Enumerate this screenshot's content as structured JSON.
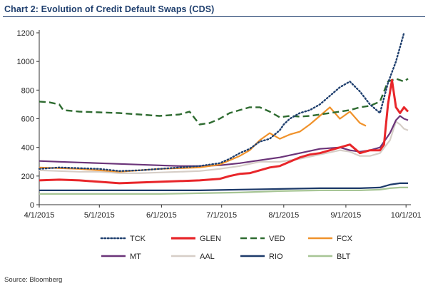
{
  "chart_data": {
    "type": "line",
    "title": "Chart 2: Evolution of Credit Default Swaps (CDS)",
    "xlabel": "",
    "ylabel": "",
    "ylim": [
      0,
      1200
    ],
    "yticks": [
      0,
      200,
      400,
      600,
      800,
      1000,
      1200
    ],
    "xlim": [
      0,
      184
    ],
    "xticks": [
      {
        "label": "4/1/2015",
        "day": 0
      },
      {
        "label": "5/1/2015",
        "day": 30
      },
      {
        "label": "6/1/2015",
        "day": 61
      },
      {
        "label": "7/1/2015",
        "day": 91
      },
      {
        "label": "8/1/2015",
        "day": 122
      },
      {
        "label": "9/1/2015",
        "day": 153
      },
      {
        "label": "10/1/201",
        "day": 183
      }
    ],
    "x_unit": "days since 4/1/2015",
    "grid": false,
    "legend_position": "bottom",
    "source": "Source: Bloomberg",
    "series": [
      {
        "name": "TCK",
        "color": "#1f3f6e",
        "style": "dotted",
        "x": [
          0,
          10,
          20,
          30,
          40,
          50,
          60,
          70,
          80,
          90,
          95,
          100,
          105,
          110,
          115,
          120,
          122,
          125,
          130,
          135,
          140,
          145,
          150,
          155,
          160,
          165,
          170,
          174,
          178,
          182
        ],
        "y": [
          250,
          260,
          255,
          250,
          235,
          240,
          250,
          260,
          270,
          290,
          320,
          360,
          390,
          440,
          460,
          520,
          560,
          600,
          640,
          660,
          700,
          760,
          820,
          860,
          790,
          700,
          640,
          850,
          1000,
          1200
        ]
      },
      {
        "name": "GLEN",
        "color": "#e8262a",
        "style": "solid",
        "x": [
          0,
          10,
          20,
          30,
          40,
          50,
          60,
          70,
          80,
          90,
          95,
          100,
          105,
          110,
          115,
          120,
          125,
          130,
          135,
          140,
          145,
          150,
          155,
          160,
          165,
          170,
          172,
          174,
          176,
          178,
          180,
          182,
          184
        ],
        "y": [
          170,
          175,
          170,
          160,
          150,
          155,
          160,
          165,
          170,
          180,
          200,
          215,
          220,
          240,
          260,
          270,
          300,
          330,
          350,
          360,
          380,
          400,
          420,
          360,
          380,
          380,
          420,
          700,
          870,
          680,
          640,
          680,
          650
        ]
      },
      {
        "name": "VED",
        "color": "#2e6b30",
        "style": "dashed",
        "x": [
          0,
          5,
          10,
          12,
          20,
          30,
          40,
          50,
          60,
          70,
          75,
          80,
          85,
          90,
          95,
          100,
          105,
          110,
          115,
          120,
          125,
          130,
          135,
          140,
          145,
          150,
          155,
          160,
          165,
          170,
          174,
          178,
          182,
          184
        ],
        "y": [
          720,
          715,
          700,
          660,
          650,
          645,
          640,
          630,
          620,
          630,
          650,
          560,
          570,
          600,
          640,
          660,
          680,
          680,
          650,
          610,
          620,
          615,
          620,
          630,
          640,
          650,
          660,
          680,
          690,
          720,
          860,
          880,
          860,
          880
        ]
      },
      {
        "name": "FCX",
        "color": "#f0922b",
        "style": "solid",
        "x": [
          0,
          10,
          20,
          30,
          40,
          50,
          60,
          70,
          80,
          90,
          95,
          100,
          105,
          110,
          115,
          120,
          125,
          130,
          135,
          140,
          145,
          150,
          155,
          160,
          163
        ],
        "y": [
          260,
          255,
          250,
          240,
          230,
          240,
          250,
          255,
          260,
          280,
          310,
          340,
          380,
          450,
          500,
          460,
          490,
          510,
          560,
          620,
          680,
          600,
          650,
          570,
          550
        ]
      },
      {
        "name": "MT",
        "color": "#6b3479",
        "style": "solid",
        "x": [
          0,
          10,
          20,
          30,
          40,
          50,
          60,
          70,
          80,
          90,
          100,
          110,
          120,
          130,
          140,
          150,
          155,
          160,
          165,
          170,
          175,
          178,
          180,
          182,
          184
        ],
        "y": [
          305,
          300,
          295,
          290,
          285,
          280,
          275,
          270,
          270,
          275,
          290,
          310,
          330,
          360,
          390,
          400,
          380,
          370,
          380,
          400,
          500,
          590,
          620,
          600,
          590
        ]
      },
      {
        "name": "AAL",
        "color": "#d6cec7",
        "style": "solid",
        "x": [
          0,
          10,
          20,
          30,
          40,
          50,
          60,
          70,
          80,
          90,
          100,
          110,
          120,
          130,
          140,
          150,
          155,
          160,
          165,
          170,
          175,
          178,
          180,
          182,
          184
        ],
        "y": [
          240,
          235,
          230,
          230,
          220,
          220,
          225,
          230,
          235,
          250,
          270,
          300,
          300,
          320,
          350,
          380,
          370,
          340,
          340,
          360,
          450,
          580,
          560,
          530,
          520
        ]
      },
      {
        "name": "RIO",
        "color": "#1d3a6a",
        "style": "solid",
        "x": [
          0,
          20,
          40,
          60,
          80,
          100,
          120,
          140,
          160,
          170,
          175,
          180,
          184
        ],
        "y": [
          100,
          100,
          100,
          100,
          100,
          105,
          110,
          115,
          115,
          120,
          140,
          150,
          150
        ]
      },
      {
        "name": "BLT",
        "color": "#a7c595",
        "style": "solid",
        "x": [
          0,
          20,
          40,
          60,
          80,
          100,
          120,
          140,
          160,
          170,
          175,
          180,
          184
        ],
        "y": [
          75,
          75,
          75,
          75,
          80,
          85,
          95,
          100,
          100,
          105,
          115,
          120,
          120
        ]
      }
    ]
  }
}
